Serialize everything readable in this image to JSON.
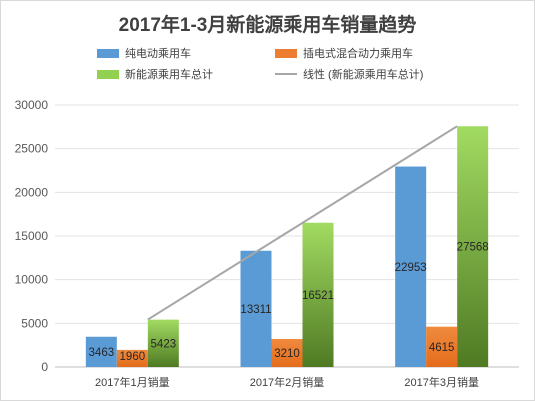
{
  "chart_data": {
    "type": "bar",
    "title": "2017年1-3月新能源乘用车销量趋势",
    "categories": [
      "2017年1月销量",
      "2017年2月销量",
      "2017年3月销量"
    ],
    "series": [
      {
        "name": "纯电动乘用车",
        "values": [
          3463,
          13311,
          22953
        ],
        "color": "#5b9bd5"
      },
      {
        "name": "插电式混合动力乘用车",
        "values": [
          1960,
          3210,
          4615
        ],
        "color": "#ed7d31"
      },
      {
        "name": "新能源乘用车总计",
        "values": [
          5423,
          16521,
          27568
        ],
        "color": "#92d050"
      }
    ],
    "trendline": {
      "name": "线性 (新能源乘用车总计)",
      "type": "linear",
      "of_series": "新能源乘用车总计",
      "color": "#a6a6a6"
    },
    "ylim": [
      0,
      30000
    ],
    "yticks": [
      "0",
      "5000",
      "10000",
      "15000",
      "20000",
      "25000",
      "30000"
    ],
    "grid": true,
    "legend_position": "top",
    "xlabel": "",
    "ylabel": ""
  }
}
